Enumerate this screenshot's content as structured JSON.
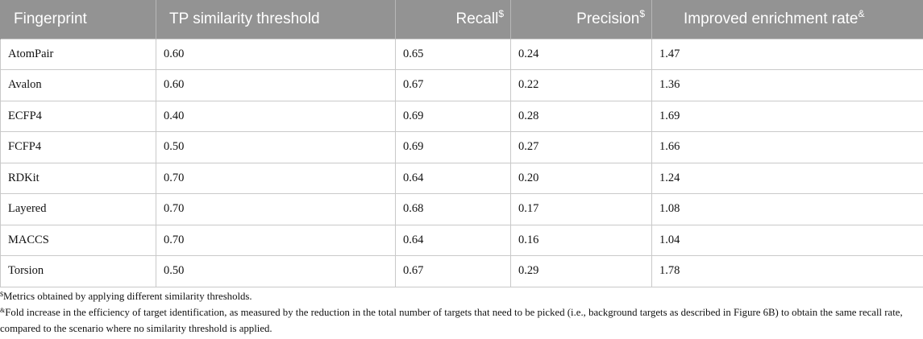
{
  "table": {
    "headers": [
      {
        "label": "Fingerprint",
        "sup": ""
      },
      {
        "label": "TP similarity threshold",
        "sup": ""
      },
      {
        "label": "Recall",
        "sup": "$"
      },
      {
        "label": "Precision",
        "sup": "$"
      },
      {
        "label": "Improved enrichment rate",
        "sup": "&"
      }
    ],
    "rows": [
      [
        "AtomPair",
        "0.60",
        "0.65",
        "0.24",
        "1.47"
      ],
      [
        "Avalon",
        "0.60",
        "0.67",
        "0.22",
        "1.36"
      ],
      [
        "ECFP4",
        "0.40",
        "0.69",
        "0.28",
        "1.69"
      ],
      [
        "FCFP4",
        "0.50",
        "0.69",
        "0.27",
        "1.66"
      ],
      [
        "RDKit",
        "0.70",
        "0.64",
        "0.20",
        "1.24"
      ],
      [
        "Layered",
        "0.70",
        "0.68",
        "0.17",
        "1.08"
      ],
      [
        "MACCS",
        "0.70",
        "0.64",
        "0.16",
        "1.04"
      ],
      [
        "Torsion",
        "0.50",
        "0.67",
        "0.29",
        "1.78"
      ]
    ]
  },
  "footnotes": [
    {
      "mark": "$",
      "text": "Metrics obtained by applying different similarity thresholds."
    },
    {
      "mark": "&",
      "text": "Fold increase in the efficiency of target identification, as measured by the reduction in the total number of targets that need to be picked (i.e., background targets as described in Figure 6B) to obtain the same recall rate, compared to the scenario where no similarity threshold is applied."
    }
  ],
  "colors": {
    "header_bg": "#939393",
    "header_text": "#ffffff",
    "grid": "#c9c9c9"
  }
}
